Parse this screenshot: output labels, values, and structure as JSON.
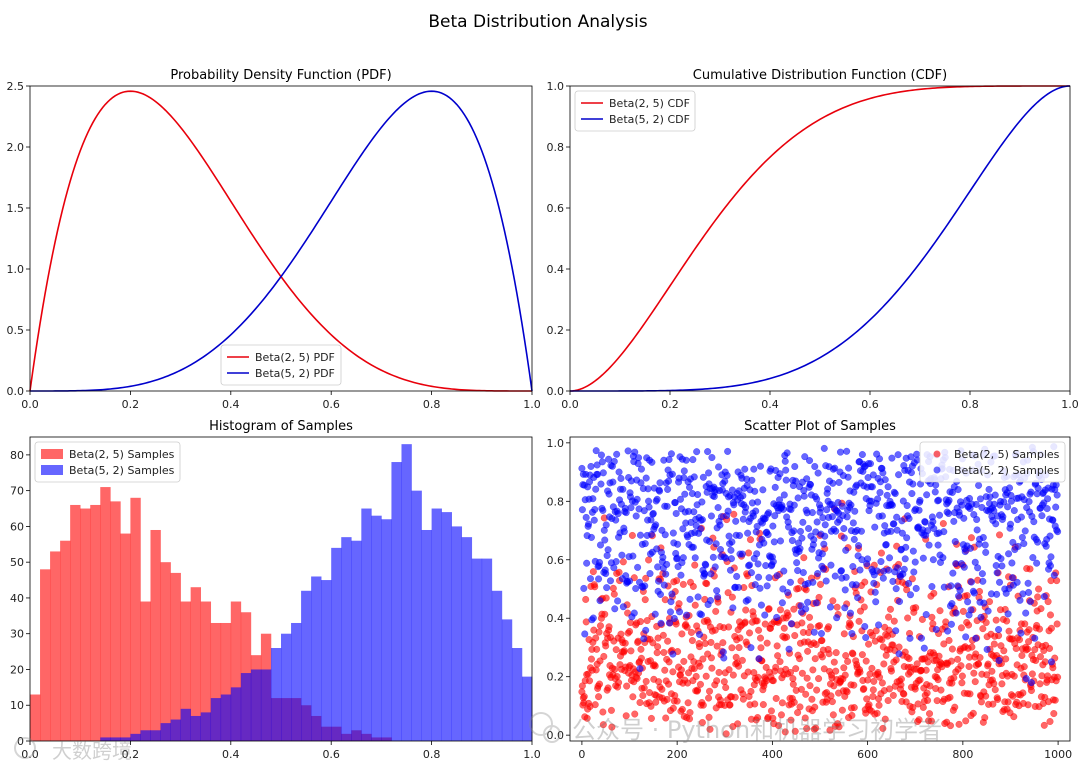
{
  "suptitle": "Beta Distribution Analysis",
  "watermark": {
    "right": "公众号 · Python和机器学习初学者",
    "left": "大数跨境"
  },
  "colors": {
    "red": "#e8000b",
    "blue": "#0000cc"
  },
  "chart_data": [
    {
      "type": "line",
      "title": "Probability Density Function (PDF)",
      "xlim": [
        0,
        1
      ],
      "ylim": [
        0,
        2.5
      ],
      "xticks": [
        0.0,
        0.2,
        0.4,
        0.6,
        0.8,
        1.0
      ],
      "xtick_labels": [
        "0.0",
        "0.2",
        "0.4",
        "0.6",
        "0.8",
        "1.0"
      ],
      "yticks": [
        0.0,
        0.5,
        1.0,
        1.5,
        2.0,
        2.5
      ],
      "ytick_labels": [
        "0.0",
        "0.5",
        "1.0",
        "1.5",
        "2.0",
        "2.5"
      ],
      "legend_position": "bottom-center",
      "series": [
        {
          "name": "Beta(2, 5) PDF",
          "color": "#e8000b",
          "alpha": 2,
          "beta": 5
        },
        {
          "name": "Beta(5, 2) PDF",
          "color": "#0000cc",
          "alpha": 5,
          "beta": 2
        }
      ]
    },
    {
      "type": "line",
      "title": "Cumulative Distribution Function (CDF)",
      "xlim": [
        0,
        1
      ],
      "ylim": [
        0,
        1
      ],
      "xticks": [
        0.0,
        0.2,
        0.4,
        0.6,
        0.8,
        1.0
      ],
      "xtick_labels": [
        "0.0",
        "0.2",
        "0.4",
        "0.6",
        "0.8",
        "1.0"
      ],
      "yticks": [
        0.0,
        0.2,
        0.4,
        0.6,
        0.8,
        1.0
      ],
      "ytick_labels": [
        "0.0",
        "0.2",
        "0.4",
        "0.6",
        "0.8",
        "1.0"
      ],
      "legend_position": "top-left",
      "series": [
        {
          "name": "Beta(2, 5) CDF",
          "color": "#e8000b",
          "alpha": 2,
          "beta": 5
        },
        {
          "name": "Beta(5, 2) CDF",
          "color": "#0000cc",
          "alpha": 5,
          "beta": 2
        }
      ]
    },
    {
      "type": "histogram",
      "title": "Histogram of Samples",
      "xlim": [
        0,
        1
      ],
      "ylim": [
        0,
        85
      ],
      "xticks": [
        0.0,
        0.2,
        0.4,
        0.6,
        0.8,
        1.0
      ],
      "xtick_labels": [
        "0.0",
        "0.2",
        "0.4",
        "0.6",
        "0.8",
        "1.0"
      ],
      "yticks": [
        0,
        10,
        20,
        30,
        40,
        50,
        60,
        70,
        80
      ],
      "ytick_labels": [
        "0",
        "10",
        "20",
        "30",
        "40",
        "50",
        "60",
        "70",
        "80"
      ],
      "legend_position": "top-left",
      "series": [
        {
          "name": "Beta(2, 5) Samples",
          "color": "#ff0000",
          "alpha_fill": 0.6,
          "bin_start": 0.0,
          "bin_width": 0.02,
          "counts": [
            13,
            48,
            53,
            56,
            66,
            65,
            66,
            71,
            67,
            58,
            68,
            39,
            59,
            50,
            47,
            39,
            43,
            39,
            33,
            33,
            39,
            36,
            24,
            30,
            12,
            12,
            12,
            10,
            7,
            4,
            4,
            2,
            3,
            2,
            1,
            1,
            0,
            0,
            0,
            0,
            0,
            0,
            0,
            0,
            0,
            0,
            0,
            0,
            0,
            0
          ]
        },
        {
          "name": "Beta(5, 2) Samples",
          "color": "#0000ff",
          "alpha_fill": 0.6,
          "bin_start": 0.0,
          "bin_width": 0.02,
          "counts": [
            0,
            0,
            0,
            0,
            0,
            0,
            0,
            1,
            1,
            1,
            2,
            3,
            3,
            5,
            6,
            9,
            7,
            8,
            12,
            13,
            15,
            19,
            20,
            20,
            26,
            30,
            33,
            42,
            46,
            45,
            54,
            57,
            56,
            65,
            63,
            62,
            78,
            83,
            70,
            59,
            65,
            64,
            60,
            57,
            51,
            51,
            42,
            34,
            26,
            18
          ]
        }
      ]
    },
    {
      "type": "scatter",
      "title": "Scatter Plot of Samples",
      "xlim": [
        -25,
        1025
      ],
      "ylim": [
        -0.02,
        1.02
      ],
      "xticks": [
        0,
        200,
        400,
        600,
        800,
        1000
      ],
      "xtick_labels": [
        "0",
        "200",
        "400",
        "600",
        "800",
        "1000"
      ],
      "yticks": [
        0.0,
        0.2,
        0.4,
        0.6,
        0.8,
        1.0
      ],
      "ytick_labels": [
        "0.0",
        "0.2",
        "0.4",
        "0.6",
        "0.8",
        "1.0"
      ],
      "n_points": 1000,
      "point_alpha": 0.6,
      "legend_position": "top-right",
      "series": [
        {
          "name": "Beta(2, 5) Samples",
          "color": "#ff0000",
          "alpha": 2,
          "beta": 5
        },
        {
          "name": "Beta(5, 2) Samples",
          "color": "#0000ff",
          "alpha": 5,
          "beta": 2
        }
      ]
    }
  ]
}
